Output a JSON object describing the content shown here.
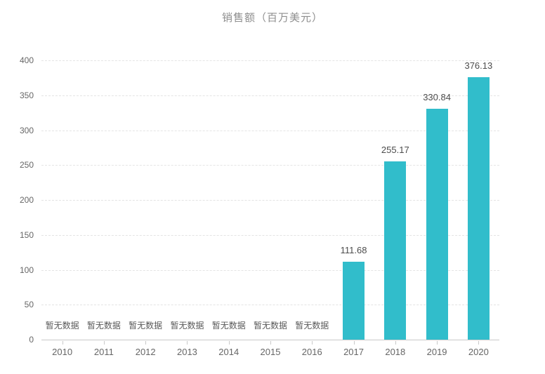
{
  "title": "销售额（百万美元）",
  "no_data_text": "暂无数据",
  "colors": {
    "bar": "#31bdcb",
    "axis_line": "#c9c9c9",
    "gridline": "#e4e4e4",
    "axis_label": "#666666",
    "value_label": "#4c4c4c",
    "title": "#8e8e8e"
  },
  "chart_data": {
    "type": "bar",
    "title": "销售额（百万美元）",
    "xlabel": "",
    "ylabel": "",
    "categories": [
      "2010",
      "2011",
      "2012",
      "2013",
      "2014",
      "2015",
      "2016",
      "2017",
      "2018",
      "2019",
      "2020"
    ],
    "values": [
      null,
      null,
      null,
      null,
      null,
      null,
      null,
      111.68,
      255.17,
      330.84,
      376.13
    ],
    "value_labels": [
      null,
      null,
      null,
      null,
      null,
      null,
      null,
      "111.68",
      "255.17",
      "330.84",
      "376.13"
    ],
    "no_data_label": "暂无数据",
    "ylim": [
      0,
      400
    ],
    "y_ticks": [
      0,
      50,
      100,
      150,
      200,
      250,
      300,
      350,
      400
    ],
    "grid": true,
    "grid_style": "dashed",
    "legend_position": "none",
    "bar_color": "#31bdcb"
  }
}
